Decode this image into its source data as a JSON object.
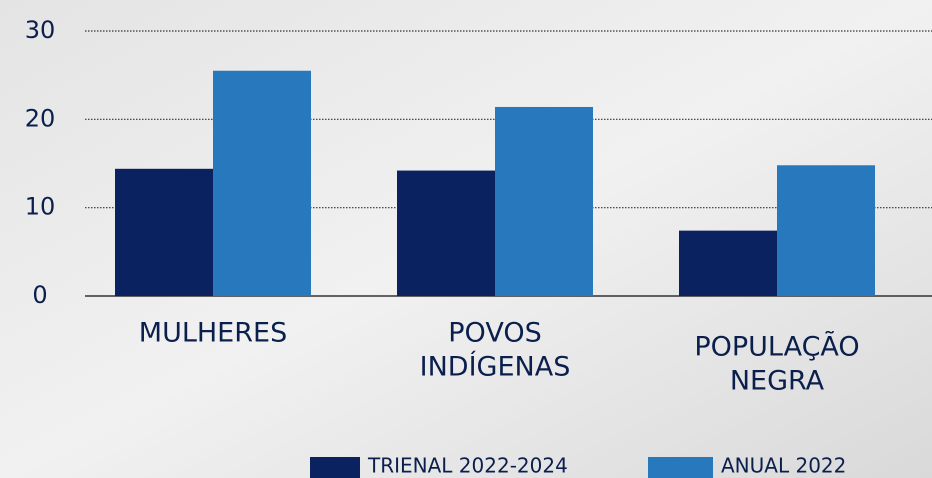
{
  "chart_data": {
    "type": "bar",
    "categories": [
      [
        "MULHERES"
      ],
      [
        "POVOS",
        "INDÍGENAS"
      ],
      [
        "POPULAÇÃO",
        "NEGRA"
      ]
    ],
    "series": [
      {
        "name": "TRIENAL 2022-2024",
        "color": "#0a2260",
        "values": [
          14.4,
          14.2,
          7.4
        ]
      },
      {
        "name": "ANUAL 2022",
        "color": "#2878be",
        "values": [
          25.5,
          21.4,
          14.8
        ]
      }
    ],
    "ylim": [
      0,
      30
    ],
    "yticks": [
      0,
      10,
      20,
      30
    ],
    "grid": true
  }
}
